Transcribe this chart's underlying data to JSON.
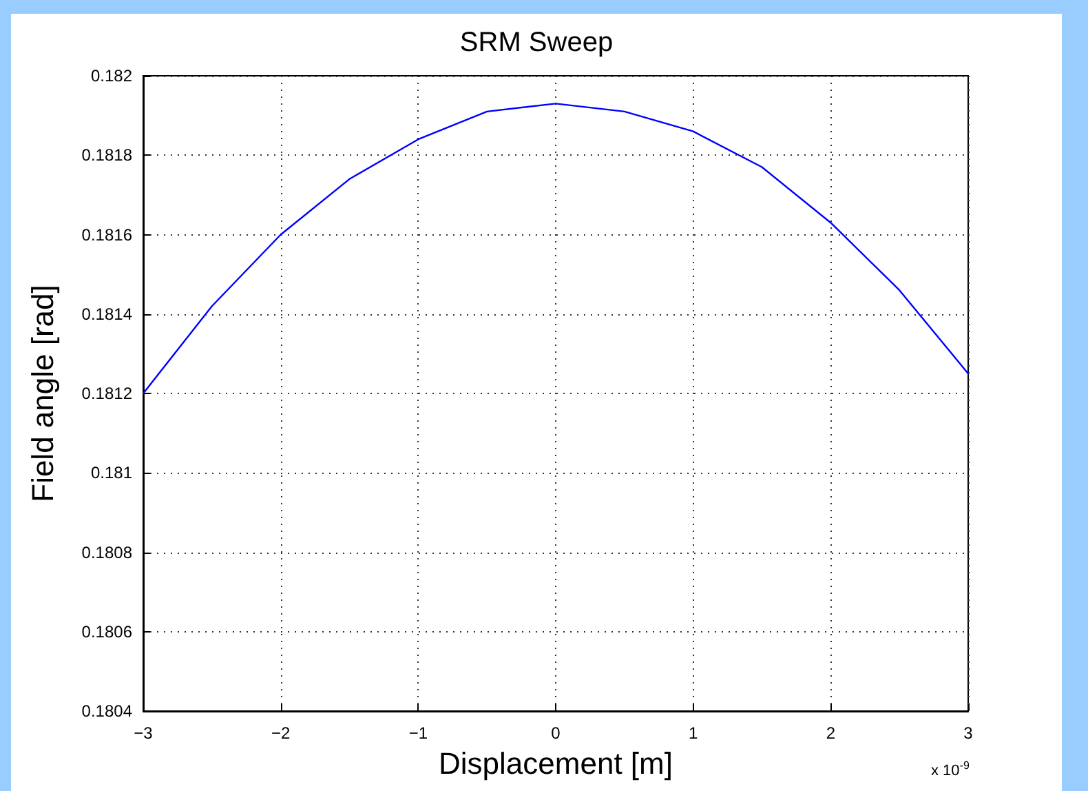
{
  "chart_data": {
    "type": "line",
    "title": "SRM Sweep",
    "xlabel": "Displacement [m]",
    "ylabel": "Field angle [rad]",
    "annotations": [
      "x 10$^{-9}$"
    ],
    "x": [
      -3,
      -2.5,
      -2,
      -1.5,
      -1,
      -0.5,
      0,
      0.5,
      1,
      1.5,
      2,
      2.5,
      3
    ],
    "series": [
      {
        "color": "#0000ff",
        "values": [
          0.1812,
          0.18142,
          0.1816,
          0.18174,
          0.18184,
          0.18191,
          0.18193,
          0.18191,
          0.18186,
          0.18177,
          0.18163,
          0.18146,
          0.18125
        ]
      }
    ],
    "xlim": [
      -3,
      3
    ],
    "xticks": [
      -3,
      -2,
      -1,
      0,
      1,
      2,
      3
    ],
    "ylim": [
      0.1804,
      0.182
    ],
    "yticks": [
      0.1804,
      0.1806,
      0.1808,
      0.181,
      0.1812,
      0.1814,
      0.1816,
      0.1818,
      0.182
    ],
    "grid": true,
    "marker": "none",
    "line_style": "solid"
  }
}
